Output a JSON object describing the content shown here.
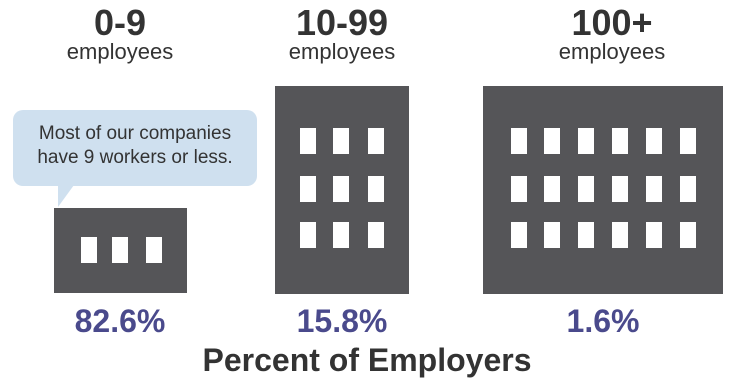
{
  "groups": [
    {
      "range": "0-9",
      "unit": "employees",
      "percent": "82.6%"
    },
    {
      "range": "10-99",
      "unit": "employees",
      "percent": "15.8%"
    },
    {
      "range": "100+",
      "unit": "employees",
      "percent": "1.6%"
    }
  ],
  "callout": {
    "text": "Most of our companies have 9 workers or less."
  },
  "footer": {
    "title": "Percent of Employers"
  },
  "colors": {
    "building": "#555558",
    "percent": "#4a4a8c",
    "callout": "#cfe0ef"
  }
}
